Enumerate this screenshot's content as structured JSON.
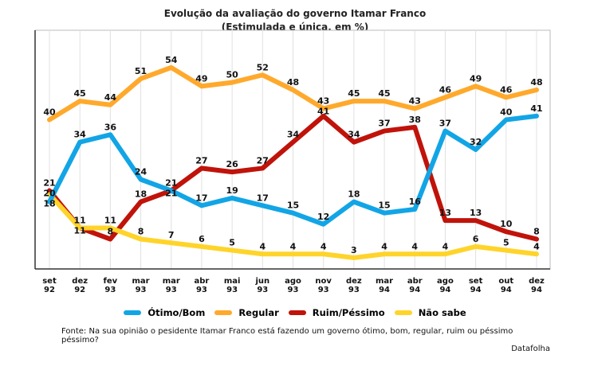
{
  "chart_data": {
    "type": "line",
    "title": "Evolução da avaliação do governo Itamar Franco",
    "subtitle": "(Estimulada e única, em %)",
    "categories": [
      [
        "set",
        "92"
      ],
      [
        "dez",
        "92"
      ],
      [
        "fev",
        "93"
      ],
      [
        "mar",
        "93"
      ],
      [
        "mar",
        "93"
      ],
      [
        "abr",
        "93"
      ],
      [
        "mai",
        "93"
      ],
      [
        "jun",
        "93"
      ],
      [
        "ago",
        "93"
      ],
      [
        "nov",
        "93"
      ],
      [
        "dez",
        "93"
      ],
      [
        "mar",
        "94"
      ],
      [
        "abr",
        "94"
      ],
      [
        "ago",
        "94"
      ],
      [
        "set",
        "94"
      ],
      [
        "out",
        "94"
      ],
      [
        "dez",
        "94"
      ]
    ],
    "ylim": [
      0,
      64
    ],
    "grid": "vertical",
    "legend_position": "bottom",
    "series": [
      {
        "name": "Regular",
        "color": "#FFA92C",
        "values": [
          40,
          45,
          44,
          51,
          54,
          49,
          50,
          52,
          48,
          43,
          45,
          45,
          43,
          46,
          49,
          46,
          48
        ]
      },
      {
        "name": "Ruim/Péssimo",
        "color": "#C0130A",
        "values": [
          21,
          11,
          8,
          18,
          21,
          27,
          26,
          27,
          34,
          41,
          34,
          37,
          38,
          13,
          13,
          10,
          8
        ]
      },
      {
        "name": "Não sabe",
        "color": "#FFD42A",
        "values": [
          20,
          11,
          11,
          8,
          7,
          6,
          5,
          4,
          4,
          4,
          3,
          4,
          4,
          4,
          6,
          5,
          4
        ]
      },
      {
        "name": "Ótimo/Bom",
        "color": "#12A5E6",
        "values": [
          18,
          34,
          36,
          24,
          21,
          17,
          19,
          17,
          15,
          12,
          18,
          15,
          16,
          37,
          32,
          40,
          41
        ]
      }
    ],
    "legend_order": [
      "Ótimo/Bom",
      "Regular",
      "Ruim/Péssimo",
      "Não sabe"
    ]
  },
  "source": "Fonte: Na sua opinião o pesidente Itamar Franco está fazendo um governo ótimo, bom, regular, ruim ou péssimo péssimo?",
  "brand": "Datafolha"
}
